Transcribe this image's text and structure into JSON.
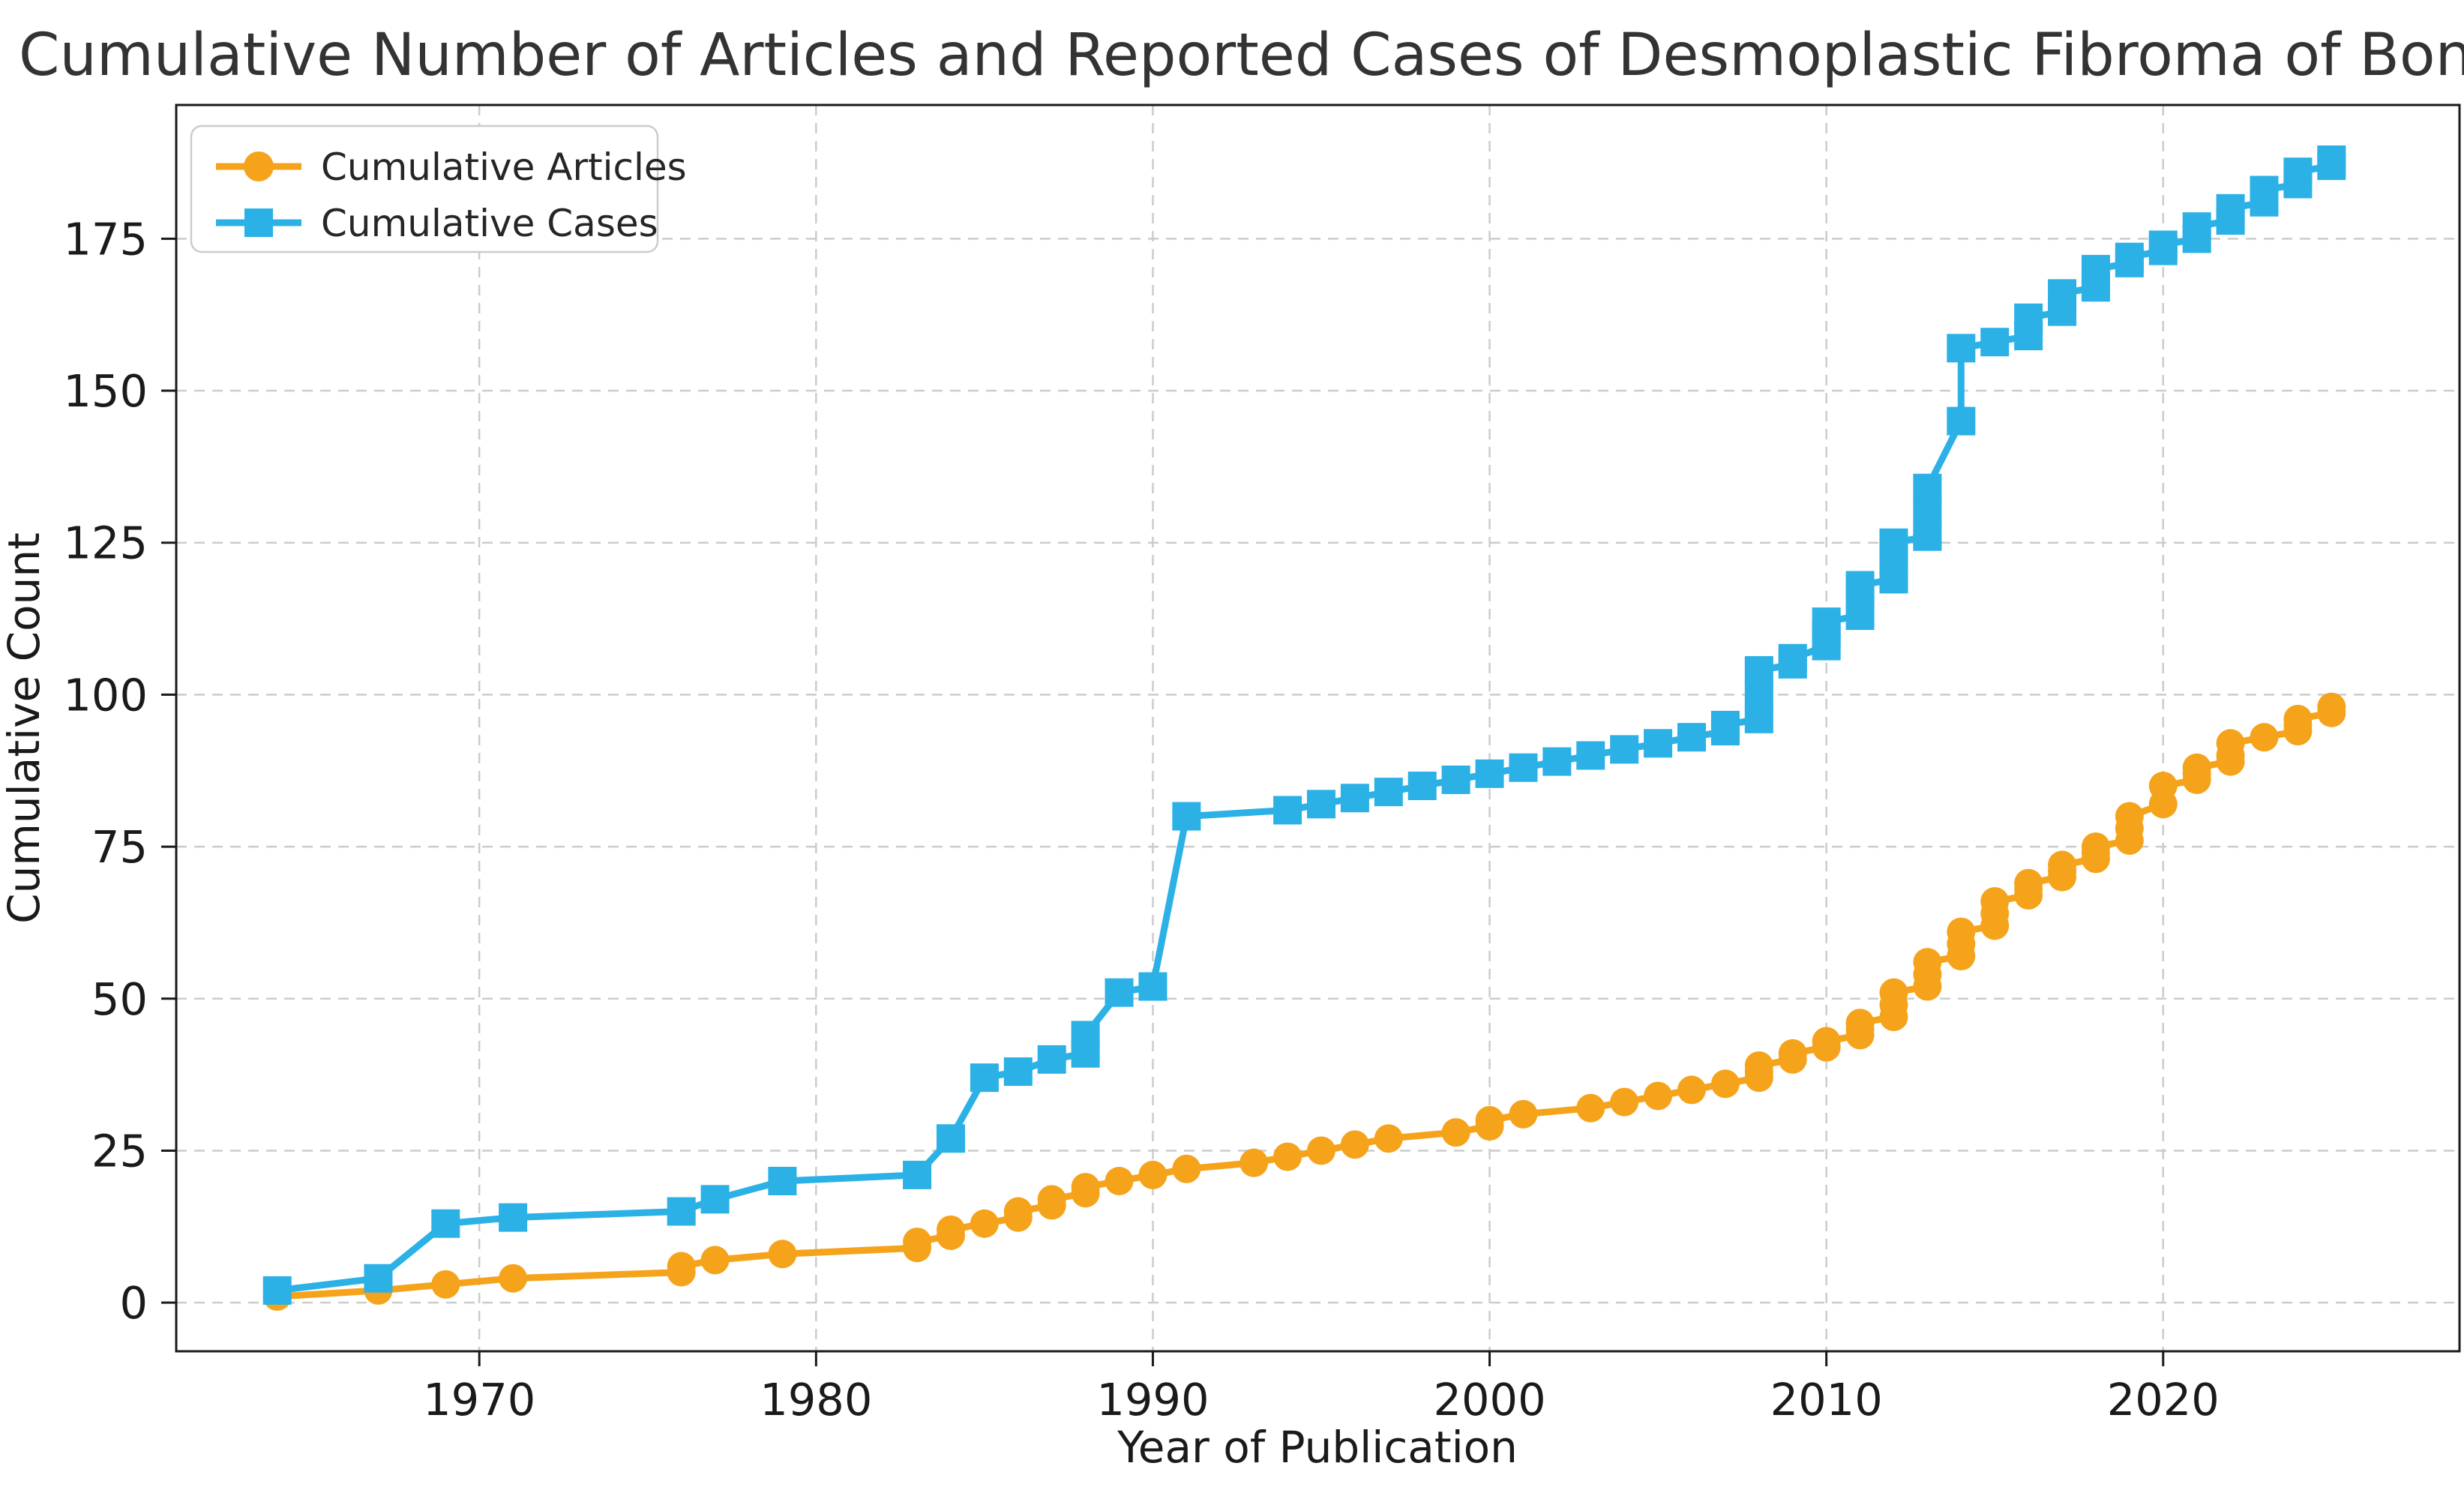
{
  "figure": {
    "background": "#ffffff"
  },
  "chart_data": {
    "type": "line",
    "title": "Cumulative Number of Articles and Reported Cases of Desmoplastic Fibroma of Bone",
    "xlabel": "Year of Publication",
    "ylabel": "Cumulative Count",
    "xlim": [
      1961,
      2028.8
    ],
    "ylim": [
      -8,
      197
    ],
    "xticks": [
      1970,
      1980,
      1990,
      2000,
      2010,
      2020
    ],
    "yticks": [
      0,
      25,
      50,
      75,
      100,
      125,
      150,
      175
    ],
    "grid": true,
    "legend_position": "upper-left",
    "colors": {
      "articles": "#F5A31B",
      "cases": "#2BB1E6",
      "grid": "#cccccc",
      "text": "#333333"
    },
    "series": [
      {
        "name": "Cumulative Articles",
        "color": "#F5A31B",
        "marker": "circle",
        "points": [
          [
            1964,
            1
          ],
          [
            1967,
            2
          ],
          [
            1969,
            3
          ],
          [
            1971,
            4
          ],
          [
            1976,
            5
          ],
          [
            1976,
            6
          ],
          [
            1977,
            7
          ],
          [
            1979,
            8
          ],
          [
            1983,
            9
          ],
          [
            1983,
            10
          ],
          [
            1984,
            11
          ],
          [
            1984,
            12
          ],
          [
            1985,
            13
          ],
          [
            1986,
            14
          ],
          [
            1986,
            15
          ],
          [
            1987,
            16
          ],
          [
            1987,
            17
          ],
          [
            1988,
            18
          ],
          [
            1988,
            19
          ],
          [
            1989,
            20
          ],
          [
            1990,
            21
          ],
          [
            1991,
            22
          ],
          [
            1993,
            23
          ],
          [
            1994,
            24
          ],
          [
            1995,
            25
          ],
          [
            1996,
            26
          ],
          [
            1997,
            27
          ],
          [
            1999,
            28
          ],
          [
            2000,
            29
          ],
          [
            2000,
            30
          ],
          [
            2001,
            31
          ],
          [
            2003,
            32
          ],
          [
            2004,
            33
          ],
          [
            2005,
            34
          ],
          [
            2006,
            35
          ],
          [
            2007,
            36
          ],
          [
            2008,
            37
          ],
          [
            2008,
            38
          ],
          [
            2008,
            39
          ],
          [
            2009,
            40
          ],
          [
            2009,
            41
          ],
          [
            2010,
            42
          ],
          [
            2010,
            43
          ],
          [
            2011,
            44
          ],
          [
            2011,
            45
          ],
          [
            2011,
            46
          ],
          [
            2012,
            47
          ],
          [
            2012,
            49
          ],
          [
            2012,
            51
          ],
          [
            2013,
            52
          ],
          [
            2013,
            54
          ],
          [
            2013,
            56
          ],
          [
            2014,
            57
          ],
          [
            2014,
            59
          ],
          [
            2014,
            61
          ],
          [
            2015,
            62
          ],
          [
            2015,
            64
          ],
          [
            2015,
            66
          ],
          [
            2016,
            67
          ],
          [
            2016,
            68
          ],
          [
            2016,
            69
          ],
          [
            2017,
            70
          ],
          [
            2017,
            71
          ],
          [
            2017,
            72
          ],
          [
            2018,
            73
          ],
          [
            2018,
            74
          ],
          [
            2018,
            75
          ],
          [
            2019,
            76
          ],
          [
            2019,
            78
          ],
          [
            2019,
            80
          ],
          [
            2020,
            82
          ],
          [
            2020,
            85
          ],
          [
            2021,
            86
          ],
          [
            2021,
            87
          ],
          [
            2021,
            88
          ],
          [
            2022,
            89
          ],
          [
            2022,
            90
          ],
          [
            2022,
            92
          ],
          [
            2023,
            93
          ],
          [
            2024,
            94
          ],
          [
            2024,
            95
          ],
          [
            2024,
            96
          ],
          [
            2025,
            97
          ],
          [
            2025,
            98
          ]
        ]
      },
      {
        "name": "Cumulative Cases",
        "color": "#2BB1E6",
        "marker": "square",
        "points": [
          [
            1964,
            2
          ],
          [
            1967,
            4
          ],
          [
            1969,
            13
          ],
          [
            1971,
            14
          ],
          [
            1976,
            15
          ],
          [
            1977,
            17
          ],
          [
            1979,
            20
          ],
          [
            1983,
            21
          ],
          [
            1984,
            27
          ],
          [
            1985,
            37
          ],
          [
            1986,
            38
          ],
          [
            1987,
            40
          ],
          [
            1988,
            41
          ],
          [
            1988,
            44
          ],
          [
            1989,
            51
          ],
          [
            1990,
            52
          ],
          [
            1991,
            80
          ],
          [
            1994,
            81
          ],
          [
            1995,
            82
          ],
          [
            1996,
            83
          ],
          [
            1997,
            84
          ],
          [
            1998,
            85
          ],
          [
            1999,
            86
          ],
          [
            2000,
            87
          ],
          [
            2001,
            88
          ],
          [
            2002,
            89
          ],
          [
            2003,
            90
          ],
          [
            2004,
            91
          ],
          [
            2005,
            92
          ],
          [
            2006,
            93
          ],
          [
            2007,
            94
          ],
          [
            2007,
            95
          ],
          [
            2008,
            96
          ],
          [
            2008,
            100
          ],
          [
            2008,
            104
          ],
          [
            2009,
            105
          ],
          [
            2009,
            106
          ],
          [
            2010,
            108
          ],
          [
            2010,
            110
          ],
          [
            2010,
            112
          ],
          [
            2011,
            113
          ],
          [
            2011,
            116
          ],
          [
            2011,
            118
          ],
          [
            2012,
            119
          ],
          [
            2012,
            122
          ],
          [
            2012,
            125
          ],
          [
            2013,
            126
          ],
          [
            2013,
            130
          ],
          [
            2013,
            134
          ],
          [
            2014,
            145
          ],
          [
            2014,
            157
          ],
          [
            2015,
            158
          ],
          [
            2016,
            159
          ],
          [
            2016,
            162
          ],
          [
            2017,
            163
          ],
          [
            2017,
            166
          ],
          [
            2018,
            167
          ],
          [
            2018,
            170
          ],
          [
            2019,
            171
          ],
          [
            2019,
            172
          ],
          [
            2020,
            173
          ],
          [
            2020,
            174
          ],
          [
            2021,
            175
          ],
          [
            2021,
            177
          ],
          [
            2022,
            178
          ],
          [
            2022,
            180
          ],
          [
            2023,
            181
          ],
          [
            2023,
            183
          ],
          [
            2024,
            184
          ],
          [
            2024,
            186
          ],
          [
            2025,
            187
          ],
          [
            2025,
            188
          ]
        ]
      }
    ]
  },
  "legend": {
    "entries": [
      {
        "label": "Cumulative Articles"
      },
      {
        "label": "Cumulative Cases"
      }
    ]
  }
}
